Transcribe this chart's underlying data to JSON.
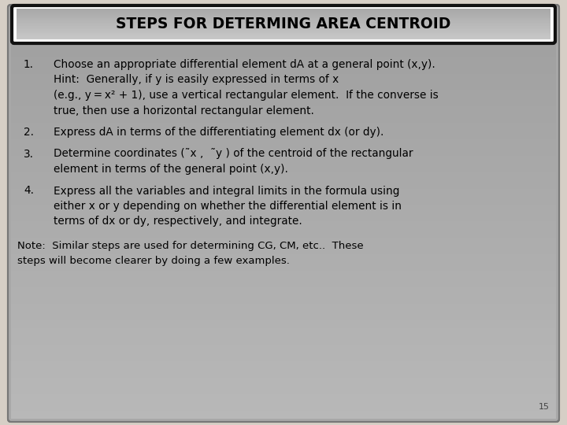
{
  "title": "STEPS FOR DETERMING AREA CENTROID",
  "slide_bg": "#d6cfc6",
  "main_bg": "#a8a8a8",
  "title_inner_bg": "#b8b8b8",
  "title_border": "#111111",
  "title_fontsize": 13.5,
  "body_fontsize": 9.8,
  "note_fontsize": 9.5,
  "page_number": "15",
  "items": [
    {
      "num": "1.",
      "lines": [
        "Choose an appropriate differential element dA at a general point (x,y).",
        "Hint:  Generally, if y is easily expressed in terms of x",
        "(e.g., y = x² + 1), use a vertical rectangular element.  If the converse is",
        "true, then use a horizontal rectangular element."
      ]
    },
    {
      "num": "2.",
      "lines": [
        "Express dA in terms of the differentiating element dx (or dy)."
      ]
    },
    {
      "num": "3.",
      "lines": [
        "Determine coordinates (˜x ,  ˜y ) of the centroid of the rectangular",
        "element in terms of the general point (x,y)."
      ]
    },
    {
      "num": "4.",
      "lines": [
        "Express all the variables and integral limits in the formula using",
        "either x or y depending on whether the differential element is in",
        "terms of dx or dy, respectively, and integrate."
      ]
    }
  ],
  "note_lines": [
    "Note:  Similar steps are used for determining CG, CM, etc..  These",
    "steps will become clearer by doing a few examples."
  ]
}
